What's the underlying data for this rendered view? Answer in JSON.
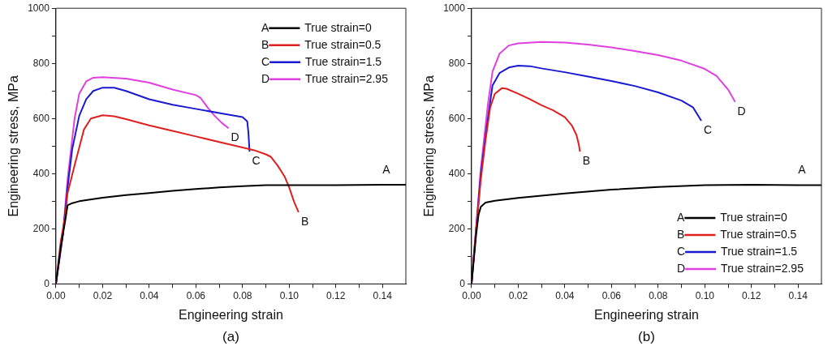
{
  "chart_data": [
    {
      "type": "line",
      "xlabel": "Engineering strain",
      "ylabel": "Engineering stress, MPa",
      "xlim": [
        0,
        0.15
      ],
      "ylim": [
        0,
        1000
      ],
      "xticks": [
        {
          "value": 0,
          "label": "0.00"
        },
        {
          "value": 0.01,
          "label": null
        },
        {
          "value": 0.02,
          "label": "0.02"
        },
        {
          "value": 0.03,
          "label": null
        },
        {
          "value": 0.04,
          "label": "0.04"
        },
        {
          "value": 0.05,
          "label": null
        },
        {
          "value": 0.06,
          "label": "0.06"
        },
        {
          "value": 0.07,
          "label": null
        },
        {
          "value": 0.08,
          "label": "0.08"
        },
        {
          "value": 0.09,
          "label": null
        },
        {
          "value": 0.1,
          "label": "0.10"
        },
        {
          "value": 0.11,
          "label": null
        },
        {
          "value": 0.12,
          "label": "0.12"
        },
        {
          "value": 0.13,
          "label": null
        },
        {
          "value": 0.14,
          "label": "0.14"
        }
      ],
      "yticks": [
        0,
        {
          "value": 100,
          "label": null
        },
        200,
        {
          "value": 300,
          "label": null
        },
        400,
        {
          "value": 500,
          "label": null
        },
        600,
        {
          "value": 700,
          "label": null
        },
        800,
        {
          "value": 900,
          "label": null
        },
        1000
      ],
      "grid": false,
      "legend": "top right",
      "marker": "none",
      "line_style": "solid",
      "series": [
        {
          "name": "True strain=0",
          "color": "#000000",
          "x": [
            0,
            0.002,
            0.004,
            0.005,
            0.007,
            0.01,
            0.02,
            0.03,
            0.04,
            0.05,
            0.06,
            0.07,
            0.08,
            0.09,
            0.1,
            0.12,
            0.14,
            0.15
          ],
          "values": [
            0,
            130,
            230,
            285,
            293,
            300,
            313,
            322,
            330,
            338,
            344,
            350,
            355,
            358,
            358,
            358,
            360,
            360
          ]
        },
        {
          "name": "True strain=0.5",
          "color": "#e02020",
          "x": [
            0,
            0.002,
            0.004,
            0.005,
            0.008,
            0.012,
            0.015,
            0.02,
            0.025,
            0.03,
            0.04,
            0.05,
            0.06,
            0.07,
            0.08,
            0.085,
            0.09,
            0.092,
            0.095,
            0.098,
            0.1,
            0.102,
            0.104
          ],
          "values": [
            0,
            150,
            250,
            330,
            430,
            560,
            600,
            612,
            608,
            598,
            575,
            555,
            535,
            515,
            495,
            485,
            470,
            462,
            430,
            390,
            350,
            300,
            260
          ]
        },
        {
          "name": "True strain=1.5",
          "color": "#1a1ad0",
          "x": [
            0,
            0.003,
            0.005,
            0.007,
            0.01,
            0.013,
            0.016,
            0.02,
            0.025,
            0.03,
            0.04,
            0.05,
            0.06,
            0.07,
            0.08,
            0.082,
            0.0825,
            0.083
          ],
          "values": [
            0,
            180,
            350,
            490,
            610,
            670,
            700,
            712,
            712,
            700,
            670,
            650,
            635,
            620,
            605,
            590,
            550,
            480
          ]
        },
        {
          "name": "True strain=2.95",
          "color": "#e040e0",
          "x": [
            0,
            0.003,
            0.005,
            0.008,
            0.01,
            0.013,
            0.016,
            0.02,
            0.03,
            0.04,
            0.05,
            0.06,
            0.062,
            0.065,
            0.068,
            0.071,
            0.074
          ],
          "values": [
            0,
            180,
            380,
            600,
            690,
            735,
            748,
            750,
            745,
            730,
            705,
            685,
            675,
            640,
            610,
            585,
            565
          ]
        }
      ],
      "annotations": [
        "A",
        "B",
        "C",
        "D",
        "(a)"
      ]
    },
    {
      "type": "line",
      "xlabel": "Engineering strain",
      "ylabel": "Engineering stress, MPa",
      "xlim": [
        0,
        0.15
      ],
      "ylim": [
        0,
        1000
      ],
      "xticks": [
        {
          "value": 0,
          "label": "0.00"
        },
        {
          "value": 0.01,
          "label": null
        },
        {
          "value": 0.02,
          "label": "0.02"
        },
        {
          "value": 0.03,
          "label": null
        },
        {
          "value": 0.04,
          "label": "0.04"
        },
        {
          "value": 0.05,
          "label": null
        },
        {
          "value": 0.06,
          "label": "0.06"
        },
        {
          "value": 0.07,
          "label": null
        },
        {
          "value": 0.08,
          "label": "0.08"
        },
        {
          "value": 0.09,
          "label": null
        },
        {
          "value": 0.1,
          "label": "0.10"
        },
        {
          "value": 0.11,
          "label": null
        },
        {
          "value": 0.12,
          "label": "0.12"
        },
        {
          "value": 0.13,
          "label": null
        },
        {
          "value": 0.14,
          "label": "0.14"
        }
      ],
      "yticks": [
        0,
        {
          "value": 100,
          "label": null
        },
        200,
        {
          "value": 300,
          "label": null
        },
        400,
        {
          "value": 500,
          "label": null
        },
        600,
        {
          "value": 700,
          "label": null
        },
        800,
        {
          "value": 900,
          "label": null
        },
        1000
      ],
      "grid": false,
      "legend": "bottom right",
      "marker": "none",
      "line_style": "solid",
      "series": [
        {
          "name": "True strain=0",
          "color": "#000000",
          "x": [
            0,
            0.002,
            0.003,
            0.004,
            0.006,
            0.01,
            0.02,
            0.04,
            0.06,
            0.08,
            0.1,
            0.12,
            0.14,
            0.15
          ],
          "values": [
            0,
            180,
            250,
            280,
            295,
            302,
            312,
            328,
            342,
            352,
            358,
            360,
            358,
            358
          ]
        },
        {
          "name": "True strain=0.5",
          "color": "#e02020",
          "x": [
            0,
            0.002,
            0.004,
            0.006,
            0.008,
            0.01,
            0.013,
            0.015,
            0.02,
            0.025,
            0.03,
            0.035,
            0.04,
            0.043,
            0.045,
            0.046,
            0.0465
          ],
          "values": [
            0,
            200,
            380,
            520,
            640,
            690,
            710,
            708,
            690,
            670,
            648,
            630,
            605,
            575,
            540,
            505,
            480
          ]
        },
        {
          "name": "True strain=1.5",
          "color": "#1a1ad0",
          "x": [
            0,
            0.004,
            0.007,
            0.009,
            0.012,
            0.016,
            0.02,
            0.025,
            0.03,
            0.04,
            0.05,
            0.06,
            0.07,
            0.08,
            0.09,
            0.095,
            0.0985
          ],
          "values": [
            0,
            400,
            600,
            720,
            765,
            785,
            792,
            790,
            782,
            768,
            752,
            736,
            718,
            695,
            665,
            640,
            592
          ]
        },
        {
          "name": "True strain=2.95",
          "color": "#e040e0",
          "x": [
            0,
            0.004,
            0.007,
            0.009,
            0.012,
            0.016,
            0.02,
            0.03,
            0.04,
            0.05,
            0.06,
            0.07,
            0.08,
            0.09,
            0.1,
            0.105,
            0.11,
            0.113
          ],
          "values": [
            0,
            420,
            650,
            770,
            835,
            865,
            873,
            878,
            876,
            868,
            858,
            845,
            830,
            810,
            780,
            755,
            705,
            660
          ]
        }
      ],
      "annotations": [
        "A",
        "B",
        "C",
        "D",
        "(b)"
      ]
    }
  ]
}
